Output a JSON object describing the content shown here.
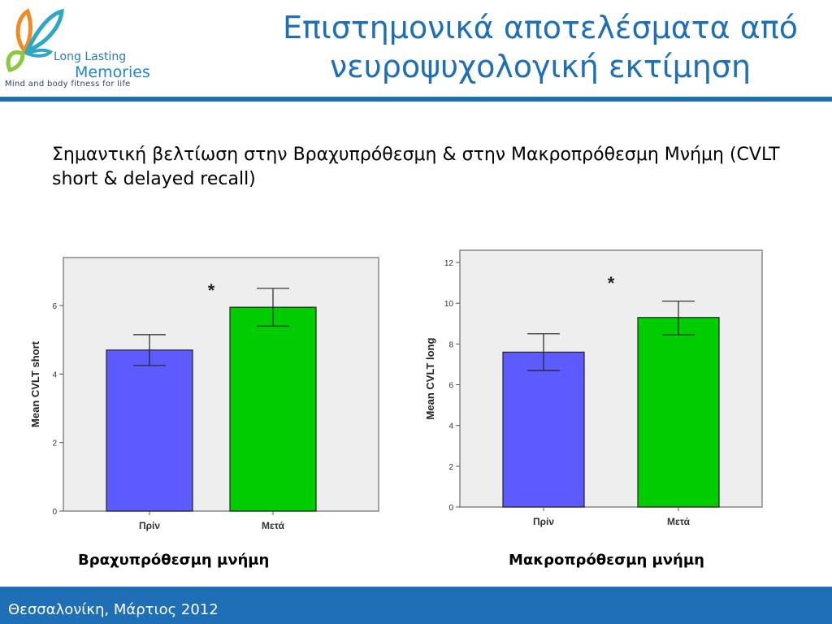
{
  "header": {
    "logo_name": "Long Lasting",
    "logo_name2": "Memories",
    "logo_tagline": "Mind and body fitness for life",
    "title": "Επιστημονικά αποτελέσματα από νευροψυχολογική εκτίμηση"
  },
  "subtitle": "Σημαντική βελτίωση στην Βραχυπρόθεσμη & στην Μακροπρόθεσμη Μνήμη (CVLT short & delayed recall)",
  "captions": {
    "left": "Βραχυπρόθεσμη μνήμη",
    "right": "Μακροπρόθεσμη μνήμη"
  },
  "footer": {
    "text": "Θεσσαλονίκη, Μάρτιος 2012"
  },
  "colors": {
    "accent": "#1e6fb5",
    "before": "#5b5bff",
    "after": "#00cc00",
    "plot_bg": "#eeeeee"
  },
  "chart_data": [
    {
      "type": "bar",
      "categories": [
        "Πρίν",
        "Μετά"
      ],
      "values": [
        4.7,
        5.95
      ],
      "error_low": [
        4.25,
        5.4
      ],
      "error_high": [
        5.15,
        6.5
      ],
      "title": "",
      "xlabel": "",
      "ylabel": "Mean CVLT short",
      "ylim": [
        0,
        7.4
      ],
      "yticks": [
        0,
        2,
        4,
        6
      ],
      "significance": "*",
      "grid": false
    },
    {
      "type": "bar",
      "categories": [
        "Πρίν",
        "Μετά"
      ],
      "values": [
        7.6,
        9.3
      ],
      "error_low": [
        6.7,
        8.45
      ],
      "error_high": [
        8.5,
        10.1
      ],
      "title": "",
      "xlabel": "",
      "ylabel": "Mean CVLT long",
      "ylim": [
        0,
        12.6
      ],
      "yticks": [
        0,
        2,
        4,
        6,
        8,
        10,
        12
      ],
      "significance": "*",
      "grid": false
    }
  ]
}
